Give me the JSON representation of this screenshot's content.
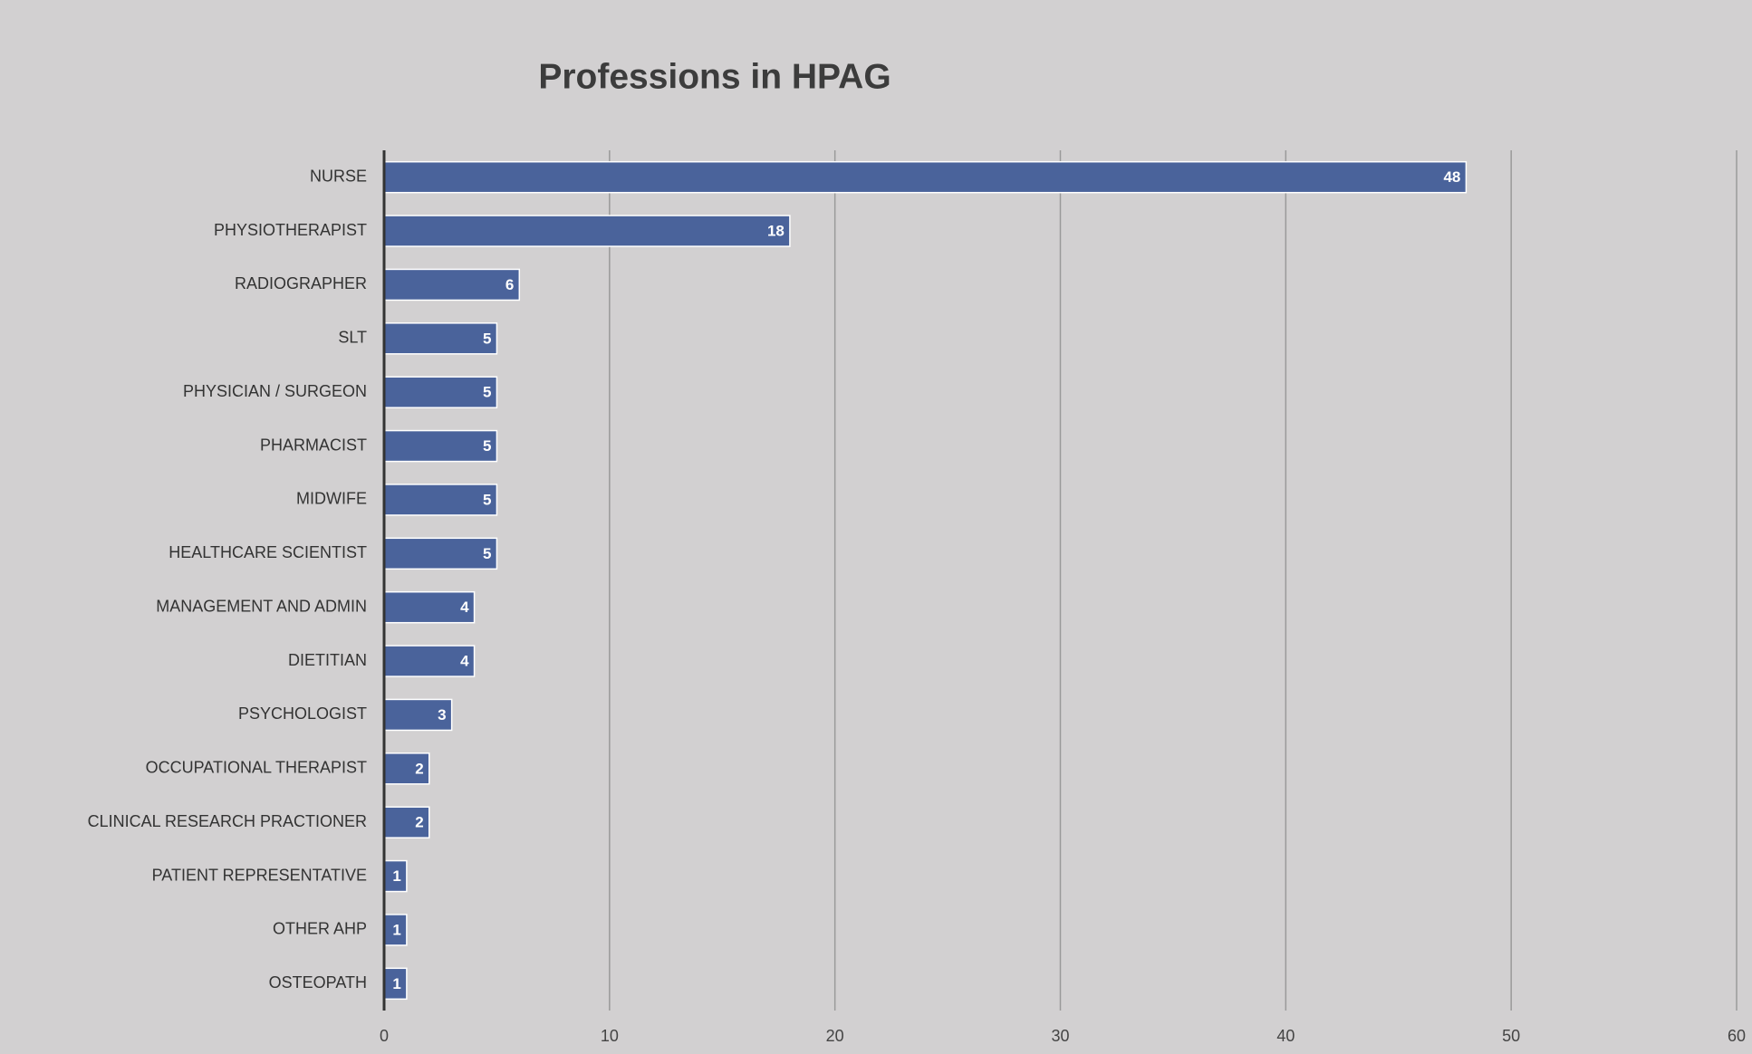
{
  "chart_data": {
    "type": "hbar",
    "title": "Professions in HPAG",
    "categories": [
      "NURSE",
      "PHYSIOTHERAPIST",
      "RADIOGRAPHER",
      "SLT",
      "PHYSICIAN / SURGEON",
      "PHARMACIST",
      "MIDWIFE",
      "HEALTHCARE SCIENTIST",
      "MANAGEMENT AND ADMIN",
      "DIETITIAN",
      "PSYCHOLOGIST",
      "OCCUPATIONAL THERAPIST",
      "CLINICAL RESEARCH PRACTIONER",
      "PATIENT REPRESENTATIVE",
      "OTHER AHP",
      "OSTEOPATH"
    ],
    "values": [
      48,
      18,
      6,
      5,
      5,
      5,
      5,
      5,
      4,
      4,
      3,
      2,
      2,
      1,
      1,
      1
    ],
    "color": "#4a639b",
    "xlim": [
      0,
      60
    ],
    "xticks": [
      0,
      10,
      20,
      30,
      40,
      50,
      60
    ],
    "grid": true
  }
}
